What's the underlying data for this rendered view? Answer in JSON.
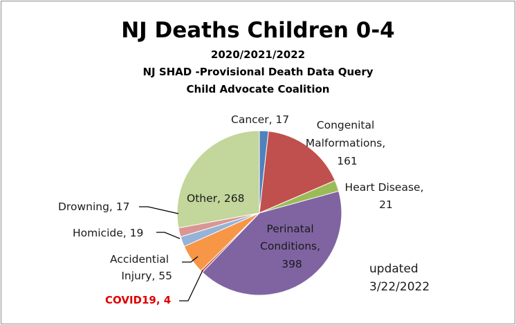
{
  "chart_data": {
    "type": "pie",
    "title": "NJ Deaths Children 0-4",
    "subtitles": [
      "2020/2021/2022",
      "NJ SHAD -Provisional Death Data Query",
      "Child Advocate Coalition"
    ],
    "slices": [
      {
        "name": "Cancer",
        "value": 17,
        "color": "#4f81bd"
      },
      {
        "name": "Congenital Malformations",
        "value": 161,
        "color": "#c0504d"
      },
      {
        "name": "Heart Disease",
        "value": 21,
        "color": "#9bbb59"
      },
      {
        "name": "Perinatal Conditions",
        "value": 398,
        "color": "#8064a2"
      },
      {
        "name": "COVID19",
        "value": 4,
        "color": "#c0504d"
      },
      {
        "name": "Accidential Injury",
        "value": 55,
        "color": "#f79646"
      },
      {
        "name": "Homicide",
        "value": 19,
        "color": "#95b3d7"
      },
      {
        "name": "Drowning",
        "value": 17,
        "color": "#d99694"
      },
      {
        "name": "Other",
        "value": 268,
        "color": "#c3d69b"
      }
    ],
    "labels": {
      "cancer": [
        "Cancer, 17"
      ],
      "congenital": [
        "Congenital",
        "Malformations,",
        "161"
      ],
      "heart": [
        "Heart Disease,",
        "21"
      ],
      "perinatal": [
        "Perinatal",
        "Conditions,",
        "398"
      ],
      "covid": [
        "COVID19, 4"
      ],
      "accidential": [
        "Accidential",
        "Injury, 55"
      ],
      "homicide": [
        "Homicide, 19"
      ],
      "drowning": [
        "Drowning, 17"
      ],
      "other": [
        "Other, 268"
      ]
    },
    "annotation": [
      "updated",
      "3/22/2022"
    ]
  }
}
